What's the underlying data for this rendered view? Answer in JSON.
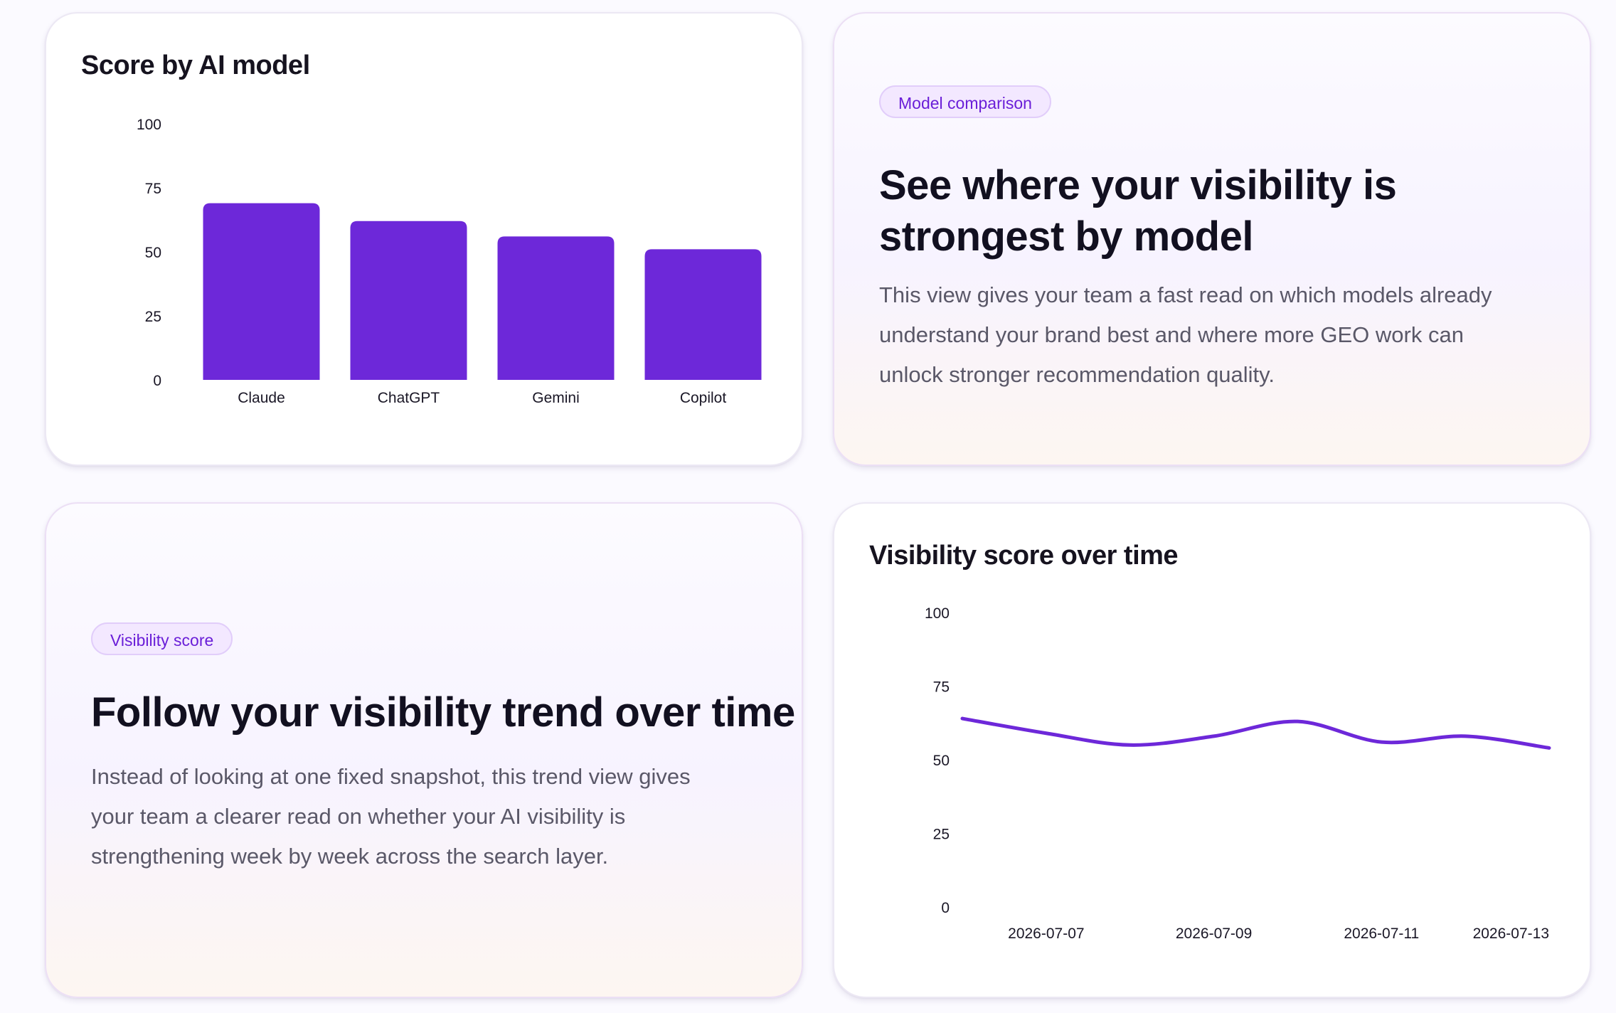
{
  "colors": {
    "accent": "#6d28d9",
    "pill_text": "#6a1ed8",
    "pill_bg": "#f3e8ff"
  },
  "bar_card": {
    "title": "Score by AI model"
  },
  "model_comparison": {
    "pill": "Model comparison",
    "heading_line1": "See where your visibility is",
    "heading_line2": "strongest by model",
    "body_line1": "This view gives your team a fast read on which models already",
    "body_line2": "understand your brand best and where more GEO work can",
    "body_line3": "unlock stronger recommendation quality."
  },
  "visibility_trend": {
    "pill": "Visibility score",
    "heading": "Follow your visibility trend over time",
    "body_line1": "Instead of looking at one fixed snapshot, this trend view gives",
    "body_line2": "your team a clearer read on whether your AI visibility is",
    "body_line3": "strengthening week by week across the search layer."
  },
  "line_card": {
    "title": "Visibility score over time"
  },
  "chart_data": [
    {
      "type": "bar",
      "title": "Score by AI model",
      "categories": [
        "Claude",
        "ChatGPT",
        "Gemini",
        "Copilot"
      ],
      "values": [
        69,
        62,
        56,
        51
      ],
      "ylim": [
        0,
        100
      ],
      "yticks": [
        0,
        25,
        50,
        75,
        100
      ],
      "xlabel": "",
      "ylabel": "",
      "grid": false,
      "color": "#6d28d9"
    },
    {
      "type": "line",
      "title": "Visibility score over time",
      "x": [
        "2026-07-06",
        "2026-07-07",
        "2026-07-08",
        "2026-07-09",
        "2026-07-10",
        "2026-07-11",
        "2026-07-12",
        "2026-07-13"
      ],
      "series": [
        {
          "values": [
            64,
            59,
            55,
            58,
            63,
            56,
            58,
            54
          ]
        }
      ],
      "xticks": [
        "2026-07-07",
        "2026-07-09",
        "2026-07-11",
        "2026-07-13"
      ],
      "ylim": [
        0,
        100
      ],
      "yticks": [
        0,
        25,
        50,
        75,
        100
      ],
      "xlabel": "",
      "ylabel": "",
      "grid": false,
      "color": "#6d28d9"
    }
  ]
}
